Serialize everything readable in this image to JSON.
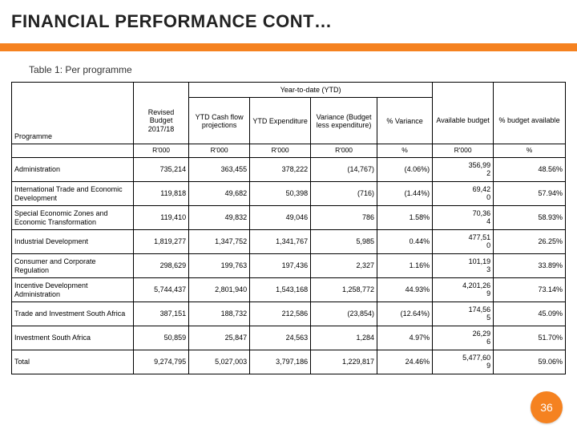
{
  "title": "FINANCIAL PERFORMANCE CONT…",
  "caption": "Table 1: Per programme",
  "ytd_header": "Year-to-date (YTD)",
  "columns": {
    "programme": "Programme",
    "revised": "Revised Budget 2017/18",
    "cashflow": "YTD Cash flow projections",
    "expenditure": "YTD Expenditure",
    "variance": "Variance (Budget less expenditure)",
    "pct_var": "% Variance",
    "avail": "Available budget",
    "pct_avail": "% budget available"
  },
  "units": {
    "programme": "",
    "revised": "R'000",
    "cashflow": "R'000",
    "expenditure": "R'000",
    "variance": "R'000",
    "pct_var": "%",
    "pct_avail": "%",
    "avail": "R'000"
  },
  "rows": [
    {
      "label": "Administration",
      "revised": "735,214",
      "cashflow": "363,455",
      "expenditure": "378,222",
      "variance": "(14,767)",
      "pct_var": "(4.06%)",
      "avail_top": "356,99",
      "avail_bot": "2",
      "pct_avail": "48.56%"
    },
    {
      "label": "International Trade and Economic Development",
      "revised": "119,818",
      "cashflow": "49,682",
      "expenditure": "50,398",
      "variance": "(716)",
      "pct_var": "(1.44%)",
      "avail_top": "69,42",
      "avail_bot": "0",
      "pct_avail": "57.94%"
    },
    {
      "label": "Special Economic Zones and Economic Transformation",
      "revised": "119,410",
      "cashflow": "49,832",
      "expenditure": "49,046",
      "variance": "786",
      "pct_var": "1.58%",
      "avail_top": "70,36",
      "avail_bot": "4",
      "pct_avail": "58.93%"
    },
    {
      "label": "Industrial Development",
      "revised": "1,819,277",
      "cashflow": "1,347,752",
      "expenditure": "1,341,767",
      "variance": "5,985",
      "pct_var": "0.44%",
      "avail_top": "477,51",
      "avail_bot": "0",
      "pct_avail": "26.25%"
    },
    {
      "label": "Consumer and Corporate Regulation",
      "revised": "298,629",
      "cashflow": "199,763",
      "expenditure": "197,436",
      "variance": "2,327",
      "pct_var": "1.16%",
      "avail_top": "101,19",
      "avail_bot": "3",
      "pct_avail": "33.89%"
    },
    {
      "label": "Incentive Development Administration",
      "revised": "5,744,437",
      "cashflow": "2,801,940",
      "expenditure": "1,543,168",
      "variance": "1,258,772",
      "pct_var": "44.93%",
      "avail_top": "4,201,26",
      "avail_bot": "9",
      "pct_avail": "73.14%"
    },
    {
      "label": "Trade and Investment South Africa",
      "revised": "387,151",
      "cashflow": "188,732",
      "expenditure": "212,586",
      "variance": "(23,854)",
      "pct_var": "(12.64%)",
      "avail_top": "174,56",
      "avail_bot": "5",
      "pct_avail": "45.09%"
    },
    {
      "label": "Investment South Africa",
      "revised": "50,859",
      "cashflow": "25,847",
      "expenditure": "24,563",
      "variance": "1,284",
      "pct_var": "4.97%",
      "avail_top": "26,29",
      "avail_bot": "6",
      "pct_avail": "51.70%"
    },
    {
      "label": "Total",
      "revised": "9,274,795",
      "cashflow": "5,027,003",
      "expenditure": "3,797,186",
      "variance": "1,229,817",
      "pct_var": "24.46%",
      "avail_top": "5,477,60",
      "avail_bot": "9",
      "pct_avail": "59.06%"
    }
  ],
  "page_number": "36",
  "colors": {
    "accent": "#f58220"
  }
}
